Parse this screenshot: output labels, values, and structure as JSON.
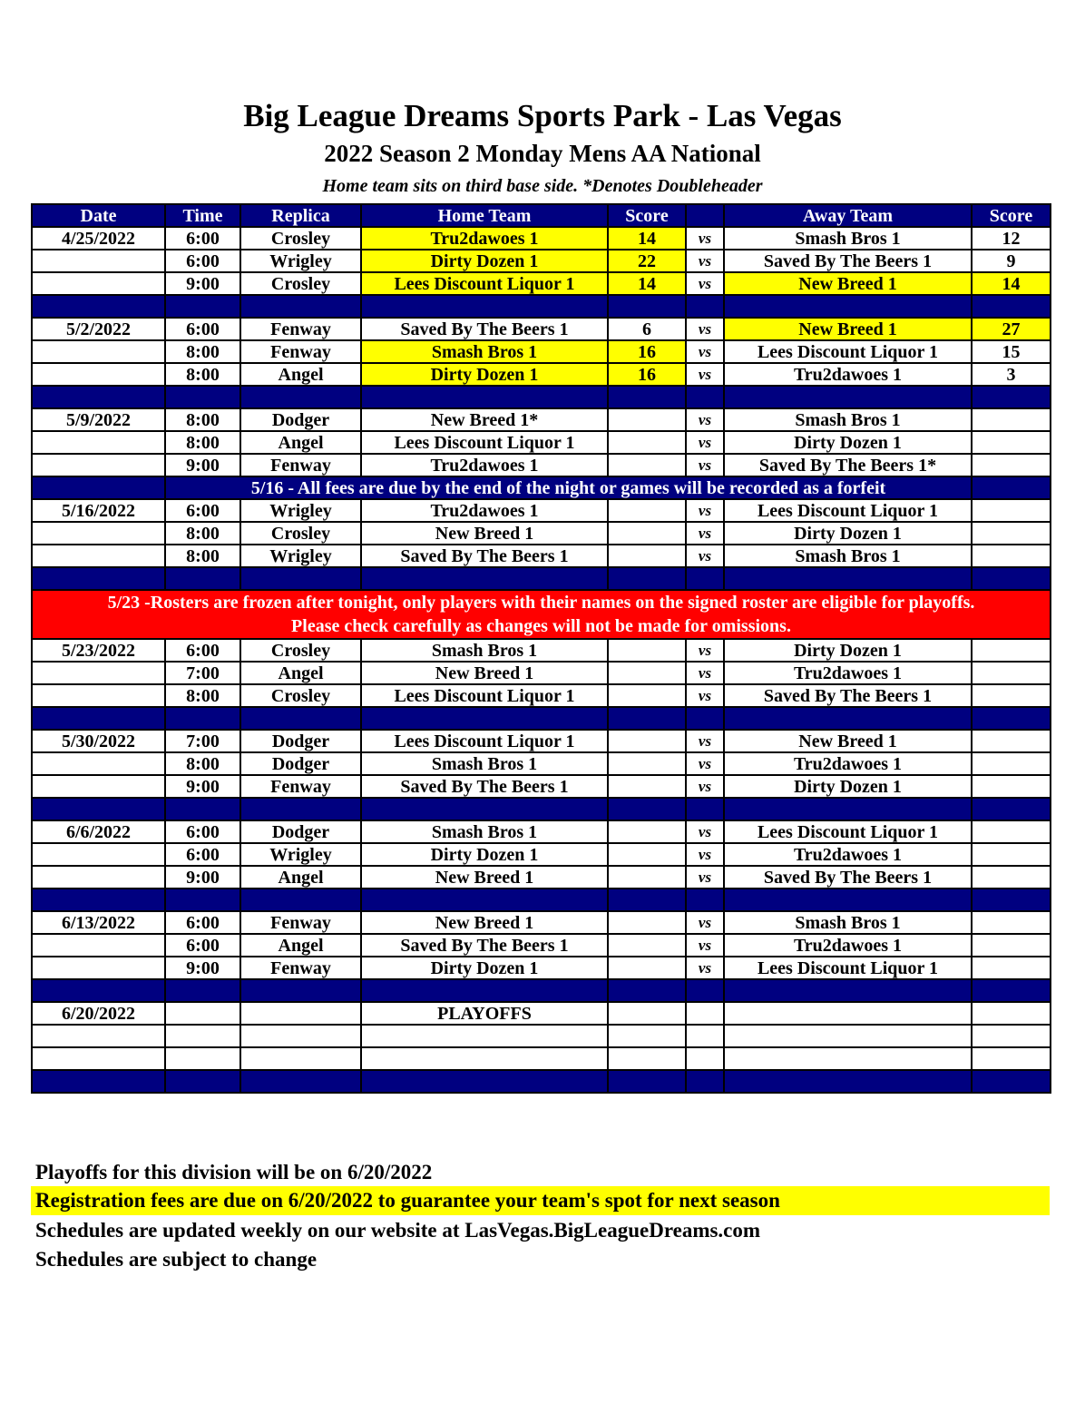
{
  "header": {
    "title": "Big League Dreams Sports Park - Las Vegas",
    "subtitle": "2022 Season 2 Monday Mens AA National",
    "note": "Home team sits on third base side.  *Denotes Doubleheader"
  },
  "colors": {
    "header_bg": "#000080",
    "winner_highlight": "#ffff00",
    "alert_bg": "#ff0000"
  },
  "columns": [
    "Date",
    "Time",
    "Replica",
    "Home Team",
    "Score",
    "",
    "Away Team",
    "Score"
  ],
  "rows": [
    {
      "type": "game",
      "date": "4/25/2022",
      "time": "6:00",
      "field": "Crosley",
      "home": "Tru2dawoes 1",
      "home_score": "14",
      "vs": "vs",
      "away": "Smash Bros 1",
      "away_score": "12",
      "winner": "home"
    },
    {
      "type": "game",
      "date": "",
      "time": "6:00",
      "field": "Wrigley",
      "home": "Dirty Dozen 1",
      "home_score": "22",
      "vs": "vs",
      "away": "Saved By The Beers 1",
      "away_score": "9",
      "winner": "home"
    },
    {
      "type": "game",
      "date": "",
      "time": "9:00",
      "field": "Crosley",
      "home": "Lees Discount Liquor 1",
      "home_score": "14",
      "vs": "vs",
      "away": "New Breed 1",
      "away_score": "14",
      "winner": "tie"
    },
    {
      "type": "sep"
    },
    {
      "type": "game",
      "date": "5/2/2022",
      "time": "6:00",
      "field": "Fenway",
      "home": "Saved By The Beers 1",
      "home_score": "6",
      "vs": "vs",
      "away": "New Breed 1",
      "away_score": "27",
      "winner": "away"
    },
    {
      "type": "game",
      "date": "",
      "time": "8:00",
      "field": "Fenway",
      "home": "Smash Bros 1",
      "home_score": "16",
      "vs": "vs",
      "away": "Lees Discount Liquor 1",
      "away_score": "15",
      "winner": "home"
    },
    {
      "type": "game",
      "date": "",
      "time": "8:00",
      "field": "Angel",
      "home": "Dirty Dozen 1",
      "home_score": "16",
      "vs": "vs",
      "away": "Tru2dawoes 1",
      "away_score": "3",
      "winner": "home"
    },
    {
      "type": "sep"
    },
    {
      "type": "game",
      "date": "5/9/2022",
      "time": "8:00",
      "field": "Dodger",
      "home": "New Breed 1*",
      "home_score": "",
      "vs": "vs",
      "away": "Smash Bros 1",
      "away_score": ""
    },
    {
      "type": "game",
      "date": "",
      "time": "8:00",
      "field": "Angel",
      "home": "Lees Discount Liquor 1",
      "home_score": "",
      "vs": "vs",
      "away": "Dirty Dozen 1",
      "away_score": ""
    },
    {
      "type": "game",
      "date": "",
      "time": "9:00",
      "field": "Fenway",
      "home": "Tru2dawoes 1",
      "home_score": "",
      "vs": "vs",
      "away": "Saved By The Beers 1*",
      "away_score": ""
    },
    {
      "type": "banner",
      "text": "5/16 - All fees are due by the end of the night or games will be recorded as a forfeit"
    },
    {
      "type": "game",
      "date": "5/16/2022",
      "time": "6:00",
      "field": "Wrigley",
      "home": "Tru2dawoes 1",
      "home_score": "",
      "vs": "vs",
      "away": "Lees Discount Liquor 1",
      "away_score": ""
    },
    {
      "type": "game",
      "date": "",
      "time": "8:00",
      "field": "Crosley",
      "home": "New Breed 1",
      "home_score": "",
      "vs": "vs",
      "away": "Dirty Dozen 1",
      "away_score": ""
    },
    {
      "type": "game",
      "date": "",
      "time": "8:00",
      "field": "Wrigley",
      "home": "Saved By The Beers 1",
      "home_score": "",
      "vs": "vs",
      "away": "Smash Bros 1",
      "away_score": ""
    },
    {
      "type": "sep"
    },
    {
      "type": "red",
      "line1": "5/23 -Rosters are frozen after tonight, only players with their names on the signed roster are eligible for playoffs.",
      "line2": "Please check carefully as changes will not be made for omissions."
    },
    {
      "type": "game",
      "date": "5/23/2022",
      "time": "6:00",
      "field": "Crosley",
      "home": "Smash Bros 1",
      "home_score": "",
      "vs": "vs",
      "away": "Dirty Dozen 1",
      "away_score": ""
    },
    {
      "type": "game",
      "date": "",
      "time": "7:00",
      "field": "Angel",
      "home": "New Breed 1",
      "home_score": "",
      "vs": "vs",
      "away": "Tru2dawoes 1",
      "away_score": ""
    },
    {
      "type": "game",
      "date": "",
      "time": "8:00",
      "field": "Crosley",
      "home": "Lees Discount Liquor 1",
      "home_score": "",
      "vs": "vs",
      "away": "Saved By The Beers 1",
      "away_score": ""
    },
    {
      "type": "sep"
    },
    {
      "type": "game",
      "date": "5/30/2022",
      "time": "7:00",
      "field": "Dodger",
      "home": "Lees Discount Liquor 1",
      "home_score": "",
      "vs": "vs",
      "away": "New Breed 1",
      "away_score": ""
    },
    {
      "type": "game",
      "date": "",
      "time": "8:00",
      "field": "Dodger",
      "home": "Smash Bros 1",
      "home_score": "",
      "vs": "vs",
      "away": "Tru2dawoes 1",
      "away_score": ""
    },
    {
      "type": "game",
      "date": "",
      "time": "9:00",
      "field": "Fenway",
      "home": "Saved By The Beers 1",
      "home_score": "",
      "vs": "vs",
      "away": "Dirty Dozen 1",
      "away_score": ""
    },
    {
      "type": "sep"
    },
    {
      "type": "game",
      "date": "6/6/2022",
      "time": "6:00",
      "field": "Dodger",
      "home": "Smash Bros 1",
      "home_score": "",
      "vs": "vs",
      "away": "Lees Discount Liquor 1",
      "away_score": ""
    },
    {
      "type": "game",
      "date": "",
      "time": "6:00",
      "field": "Wrigley",
      "home": "Dirty Dozen 1",
      "home_score": "",
      "vs": "vs",
      "away": "Tru2dawoes 1",
      "away_score": ""
    },
    {
      "type": "game",
      "date": "",
      "time": "9:00",
      "field": "Angel",
      "home": "New Breed 1",
      "home_score": "",
      "vs": "vs",
      "away": "Saved By The Beers 1",
      "away_score": ""
    },
    {
      "type": "sep"
    },
    {
      "type": "game",
      "date": "6/13/2022",
      "time": "6:00",
      "field": "Fenway",
      "home": "New Breed 1",
      "home_score": "",
      "vs": "vs",
      "away": "Smash Bros 1",
      "away_score": ""
    },
    {
      "type": "game",
      "date": "",
      "time": "6:00",
      "field": "Angel",
      "home": "Saved By The Beers 1",
      "home_score": "",
      "vs": "vs",
      "away": "Tru2dawoes 1",
      "away_score": ""
    },
    {
      "type": "game",
      "date": "",
      "time": "9:00",
      "field": "Fenway",
      "home": "Dirty Dozen 1",
      "home_score": "",
      "vs": "vs",
      "away": "Lees Discount Liquor 1",
      "away_score": ""
    },
    {
      "type": "sep"
    },
    {
      "type": "game",
      "date": "6/20/2022",
      "time": "",
      "field": "",
      "home": "PLAYOFFS",
      "home_score": "",
      "vs": "",
      "away": "",
      "away_score": ""
    },
    {
      "type": "game",
      "date": "",
      "time": "",
      "field": "",
      "home": "",
      "home_score": "",
      "vs": "",
      "away": "",
      "away_score": ""
    },
    {
      "type": "game",
      "date": "",
      "time": "",
      "field": "",
      "home": "",
      "home_score": "",
      "vs": "",
      "away": "",
      "away_score": ""
    },
    {
      "type": "sep"
    }
  ],
  "footer": {
    "line1": "Playoffs for this division will be on 6/20/2022",
    "line2": "Registration fees are due on 6/20/2022 to guarantee your team's spot for next season",
    "line3": "Schedules are updated weekly on our website at LasVegas.BigLeagueDreams.com",
    "line4": "Schedules are subject to change"
  }
}
